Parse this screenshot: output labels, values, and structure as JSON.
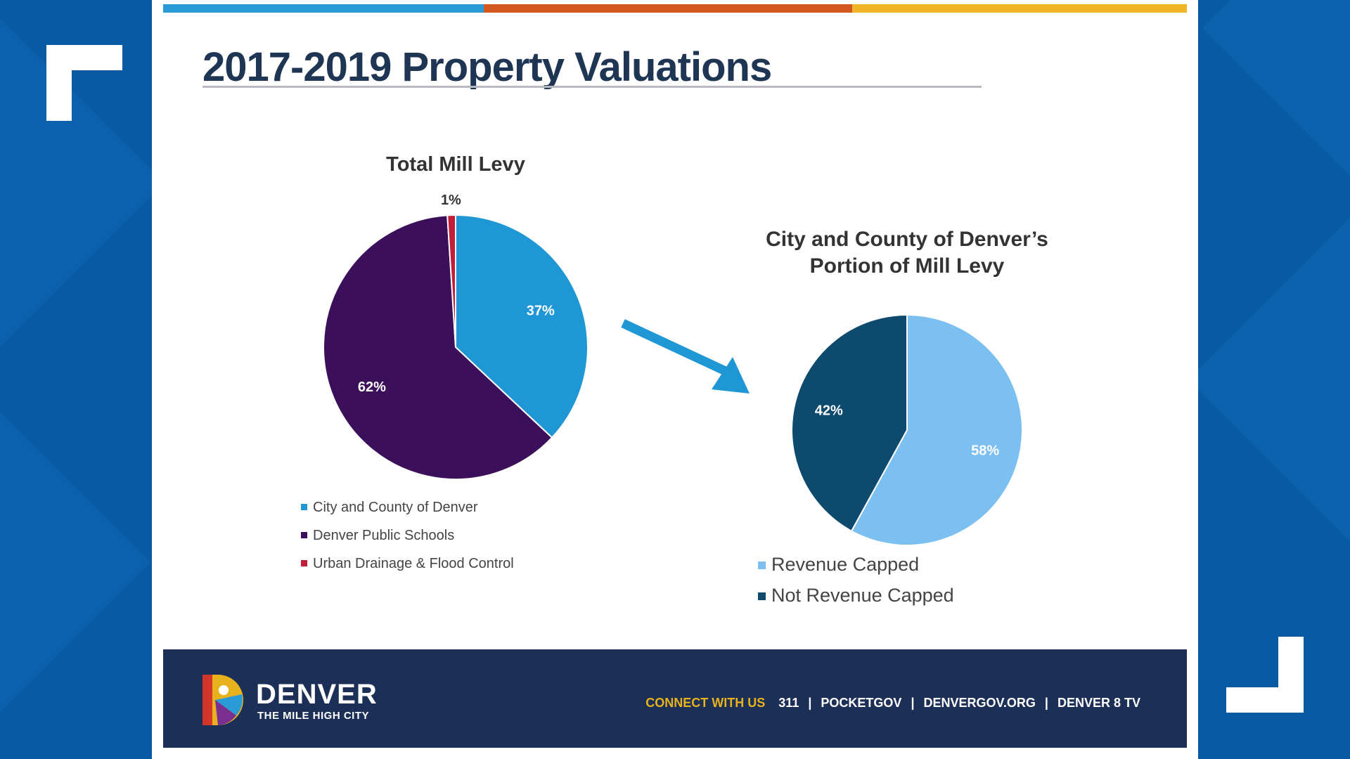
{
  "slide": {
    "title": "2017-2019 Property Valuations",
    "stripe_colors": [
      "#2a9bd6",
      "#d2581f",
      "#f0b429"
    ]
  },
  "chart_data": [
    {
      "type": "pie",
      "title": "Total Mill Levy",
      "slices": [
        {
          "name": "City and County of Denver",
          "value": 37,
          "label": "37%",
          "color": "#1f97d4"
        },
        {
          "name": "Denver Public Schools",
          "value": 62,
          "label": "62%",
          "color": "#3b0f5a"
        },
        {
          "name": "Urban Drainage & Flood Control",
          "value": 1,
          "label": "1%",
          "color": "#c21e3a"
        }
      ],
      "legend_placement": "bottom"
    },
    {
      "type": "pie",
      "title_lines": [
        "City and County of Denver’s",
        "Portion of Mill Levy"
      ],
      "slices": [
        {
          "name": "Revenue Capped",
          "value": 58,
          "label": "58%",
          "color": "#7cc0f2"
        },
        {
          "name": "Not Revenue Capped",
          "value": 42,
          "label": "42%",
          "color": "#0e4a6e"
        }
      ],
      "legend_placement": "bottom"
    }
  ],
  "arrow_color": "#1f97d4",
  "footer": {
    "brand": "DENVER",
    "brand_sub": "THE MILE HIGH CITY",
    "connect_label": "CONNECT WITH US",
    "links": [
      "311",
      "POCKETGOV",
      "DENVERGOV.ORG",
      "DENVER 8 TV"
    ]
  }
}
